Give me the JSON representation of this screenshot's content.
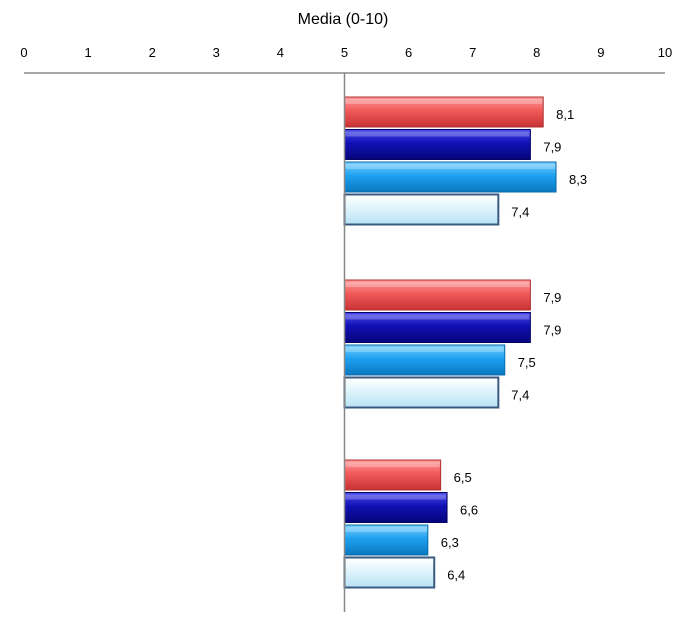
{
  "chart_data": {
    "type": "bar",
    "orientation": "horizontal",
    "title": "Media (0-10)",
    "xlim": [
      0,
      10
    ],
    "x_ticks": [
      "0",
      "1",
      "2",
      "3",
      "4",
      "5",
      "6",
      "7",
      "8",
      "9",
      "10"
    ],
    "baseline": 5,
    "grid": false,
    "legend": "none",
    "series_colors": [
      "#f15a5a",
      "#1010b4",
      "#1ea0f0",
      "#dff4fc"
    ],
    "groups": [
      {
        "values": [
          8.1,
          7.9,
          8.3,
          7.4
        ],
        "labels": [
          "8,1",
          "7,9",
          "8,3",
          "7,4"
        ]
      },
      {
        "values": [
          7.9,
          7.9,
          7.5,
          7.4
        ],
        "labels": [
          "7,9",
          "7,9",
          "7,5",
          "7,4"
        ]
      },
      {
        "values": [
          6.5,
          6.6,
          6.3,
          6.4
        ],
        "labels": [
          "6,5",
          "6,6",
          "6,3",
          "6,4"
        ]
      }
    ]
  }
}
